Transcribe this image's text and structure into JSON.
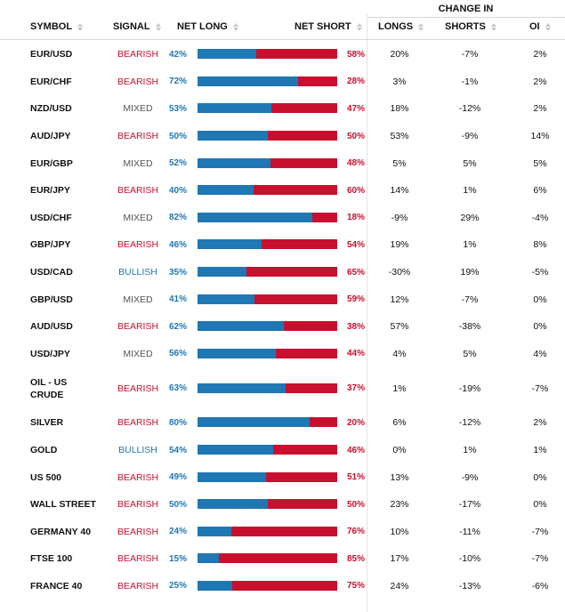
{
  "header": {
    "change_in": "CHANGE IN",
    "symbol": "SYMBOL",
    "signal": "SIGNAL",
    "net_long": "NET LONG",
    "net_short": "NET SHORT",
    "longs": "LONGS",
    "shorts": "SHORTS",
    "oi": "OI"
  },
  "rows": [
    {
      "symbol": "EUR/USD",
      "signal": "BEARISH",
      "net_long": "42%",
      "net_long_value": 42,
      "net_short": "58%",
      "longs": "20%",
      "shorts": "-7%",
      "oi": "2%"
    },
    {
      "symbol": "EUR/CHF",
      "signal": "BEARISH",
      "net_long": "72%",
      "net_long_value": 72,
      "net_short": "28%",
      "longs": "3%",
      "shorts": "-1%",
      "oi": "2%"
    },
    {
      "symbol": "NZD/USD",
      "signal": "MIXED",
      "net_long": "53%",
      "net_long_value": 53,
      "net_short": "47%",
      "longs": "18%",
      "shorts": "-12%",
      "oi": "2%"
    },
    {
      "symbol": "AUD/JPY",
      "signal": "BEARISH",
      "net_long": "50%",
      "net_long_value": 50,
      "net_short": "50%",
      "longs": "53%",
      "shorts": "-9%",
      "oi": "14%"
    },
    {
      "symbol": "EUR/GBP",
      "signal": "MIXED",
      "net_long": "52%",
      "net_long_value": 52,
      "net_short": "48%",
      "longs": "5%",
      "shorts": "5%",
      "oi": "5%"
    },
    {
      "symbol": "EUR/JPY",
      "signal": "BEARISH",
      "net_long": "40%",
      "net_long_value": 40,
      "net_short": "60%",
      "longs": "14%",
      "shorts": "1%",
      "oi": "6%"
    },
    {
      "symbol": "USD/CHF",
      "signal": "MIXED",
      "net_long": "82%",
      "net_long_value": 82,
      "net_short": "18%",
      "longs": "-9%",
      "shorts": "29%",
      "oi": "-4%"
    },
    {
      "symbol": "GBP/JPY",
      "signal": "BEARISH",
      "net_long": "46%",
      "net_long_value": 46,
      "net_short": "54%",
      "longs": "19%",
      "shorts": "1%",
      "oi": "8%"
    },
    {
      "symbol": "USD/CAD",
      "signal": "BULLISH",
      "net_long": "35%",
      "net_long_value": 35,
      "net_short": "65%",
      "longs": "-30%",
      "shorts": "19%",
      "oi": "-5%"
    },
    {
      "symbol": "GBP/USD",
      "signal": "MIXED",
      "net_long": "41%",
      "net_long_value": 41,
      "net_short": "59%",
      "longs": "12%",
      "shorts": "-7%",
      "oi": "0%"
    },
    {
      "symbol": "AUD/USD",
      "signal": "BEARISH",
      "net_long": "62%",
      "net_long_value": 62,
      "net_short": "38%",
      "longs": "57%",
      "shorts": "-38%",
      "oi": "0%"
    },
    {
      "symbol": "USD/JPY",
      "signal": "MIXED",
      "net_long": "56%",
      "net_long_value": 56,
      "net_short": "44%",
      "longs": "4%",
      "shorts": "5%",
      "oi": "4%"
    },
    {
      "symbol": "OIL - US CRUDE",
      "signal": "BEARISH",
      "net_long": "63%",
      "net_long_value": 63,
      "net_short": "37%",
      "longs": "1%",
      "shorts": "-19%",
      "oi": "-7%",
      "tall": true
    },
    {
      "symbol": "SILVER",
      "signal": "BEARISH",
      "net_long": "80%",
      "net_long_value": 80,
      "net_short": "20%",
      "longs": "6%",
      "shorts": "-12%",
      "oi": "2%"
    },
    {
      "symbol": "GOLD",
      "signal": "BULLISH",
      "net_long": "54%",
      "net_long_value": 54,
      "net_short": "46%",
      "longs": "0%",
      "shorts": "1%",
      "oi": "1%"
    },
    {
      "symbol": "US 500",
      "signal": "BEARISH",
      "net_long": "49%",
      "net_long_value": 49,
      "net_short": "51%",
      "longs": "13%",
      "shorts": "-9%",
      "oi": "0%"
    },
    {
      "symbol": "WALL STREET",
      "signal": "BEARISH",
      "net_long": "50%",
      "net_long_value": 50,
      "net_short": "50%",
      "longs": "23%",
      "shorts": "-17%",
      "oi": "0%"
    },
    {
      "symbol": "GERMANY 40",
      "signal": "BEARISH",
      "net_long": "24%",
      "net_long_value": 24,
      "net_short": "76%",
      "longs": "10%",
      "shorts": "-11%",
      "oi": "-7%"
    },
    {
      "symbol": "FTSE 100",
      "signal": "BEARISH",
      "net_long": "15%",
      "net_long_value": 15,
      "net_short": "85%",
      "longs": "17%",
      "shorts": "-10%",
      "oi": "-7%"
    },
    {
      "symbol": "FRANCE 40",
      "signal": "BEARISH",
      "net_long": "25%",
      "net_long_value": 25,
      "net_short": "75%",
      "longs": "24%",
      "shorts": "-13%",
      "oi": "-6%"
    }
  ],
  "colors": {
    "long": "#1f77b4",
    "short": "#c8102e"
  }
}
